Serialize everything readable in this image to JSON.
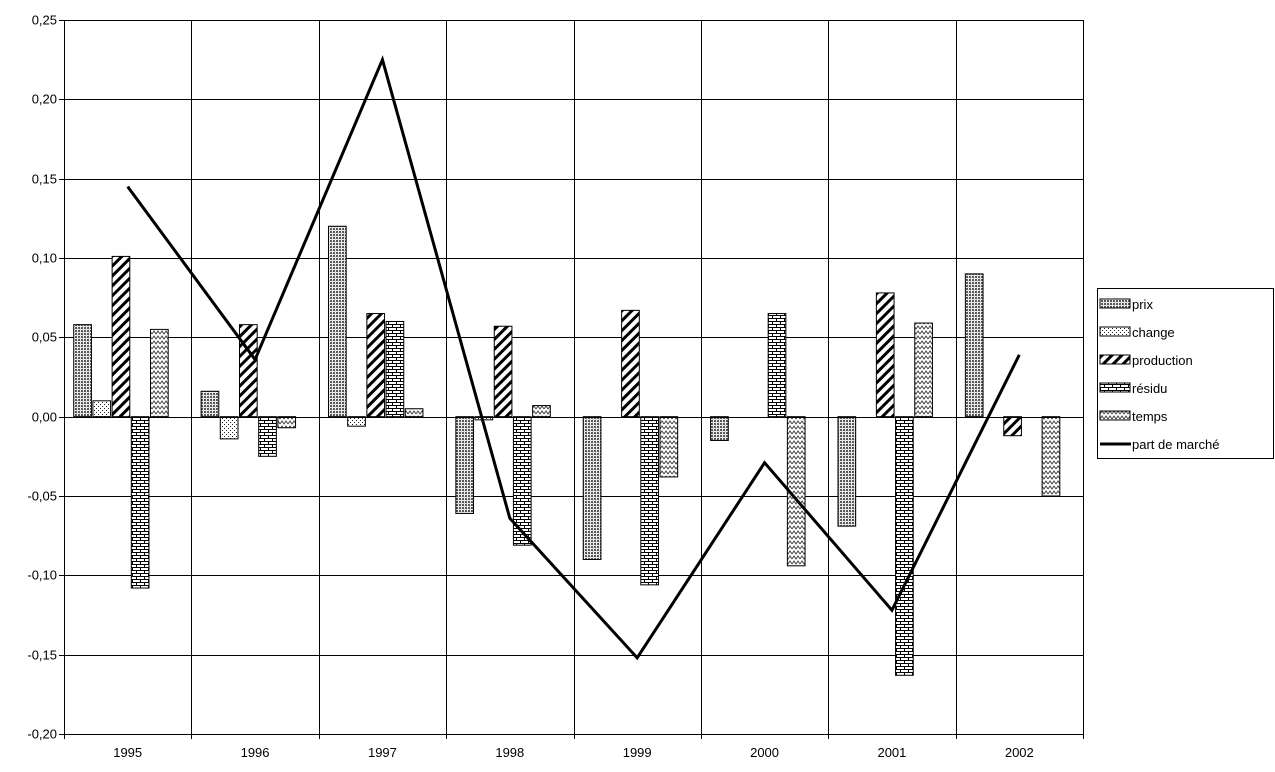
{
  "chart_data": {
    "type": "bar",
    "categories": [
      "1995",
      "1996",
      "1997",
      "1998",
      "1999",
      "2000",
      "2001",
      "2002"
    ],
    "series": [
      {
        "name": "prix",
        "kind": "bar",
        "pattern": "dense-dots",
        "values": [
          0.058,
          0.016,
          0.12,
          -0.061,
          -0.09,
          -0.015,
          -0.069,
          0.09
        ]
      },
      {
        "name": "change",
        "kind": "bar",
        "pattern": "sparse-dots",
        "values": [
          0.01,
          -0.014,
          -0.006,
          -0.002,
          0.0,
          0.0,
          0.0,
          0.0
        ]
      },
      {
        "name": "production",
        "kind": "bar",
        "pattern": "diagonal-stripes",
        "values": [
          0.101,
          0.058,
          0.065,
          0.057,
          0.067,
          0.0,
          0.078,
          -0.012
        ]
      },
      {
        "name": "résidu",
        "kind": "bar",
        "pattern": "bricks",
        "values": [
          -0.108,
          -0.025,
          0.06,
          -0.081,
          -0.106,
          0.065,
          -0.163,
          0.0
        ]
      },
      {
        "name": "temps",
        "kind": "bar",
        "pattern": "zigzag",
        "values": [
          0.055,
          -0.007,
          0.005,
          0.007,
          -0.038,
          -0.094,
          0.059,
          -0.05
        ]
      },
      {
        "name": "part de marché",
        "kind": "line",
        "color": "#000000",
        "values": [
          0.145,
          0.036,
          0.225,
          -0.064,
          -0.152,
          -0.029,
          -0.122,
          0.039
        ]
      }
    ],
    "yticks": [
      "0,25",
      "0,20",
      "0,15",
      "0,10",
      "0,05",
      "0,00",
      "-0,05",
      "-0,10",
      "-0,15",
      "-0,20"
    ],
    "ylim": [
      -0.2,
      0.25
    ],
    "ytick_step": 0.05,
    "grid": true,
    "legend_position": "right",
    "title": "",
    "xlabel": "",
    "ylabel": ""
  }
}
